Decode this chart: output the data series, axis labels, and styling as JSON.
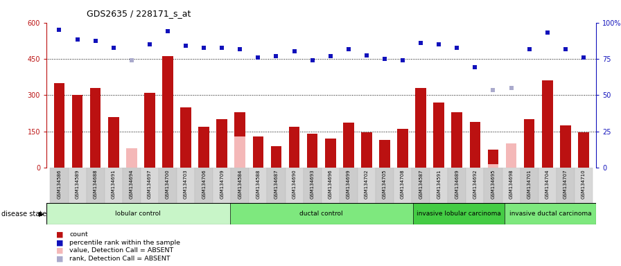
{
  "title": "GDS2635 / 228171_s_at",
  "samples": [
    "GSM134586",
    "GSM134589",
    "GSM134688",
    "GSM134691",
    "GSM134694",
    "GSM134697",
    "GSM134700",
    "GSM134703",
    "GSM134706",
    "GSM134709",
    "GSM134584",
    "GSM134588",
    "GSM134687",
    "GSM134690",
    "GSM134693",
    "GSM134696",
    "GSM134699",
    "GSM134702",
    "GSM134705",
    "GSM134708",
    "GSM134587",
    "GSM134591",
    "GSM134689",
    "GSM134692",
    "GSM134695",
    "GSM134698",
    "GSM134701",
    "GSM134704",
    "GSM134707",
    "GSM134710"
  ],
  "bar_values": [
    350,
    300,
    330,
    210,
    80,
    310,
    460,
    250,
    170,
    200,
    230,
    130,
    90,
    170,
    140,
    120,
    185,
    145,
    115,
    160,
    330,
    270,
    230,
    190,
    75,
    85,
    200,
    360,
    175,
    145
  ],
  "bar_absent": [
    null,
    null,
    null,
    null,
    80,
    null,
    null,
    null,
    null,
    null,
    130,
    null,
    null,
    null,
    null,
    null,
    null,
    null,
    null,
    null,
    null,
    null,
    null,
    null,
    15,
    100,
    null,
    null,
    null,
    null
  ],
  "rank_values": [
    570,
    530,
    525,
    495,
    null,
    510,
    565,
    505,
    495,
    495,
    490,
    455,
    460,
    480,
    445,
    460,
    490,
    465,
    450,
    445,
    515,
    510,
    495,
    415,
    null,
    null,
    490,
    560,
    490,
    455
  ],
  "rank_absent": [
    null,
    null,
    null,
    null,
    445,
    null,
    null,
    null,
    null,
    null,
    null,
    null,
    null,
    null,
    null,
    null,
    null,
    null,
    null,
    null,
    null,
    null,
    null,
    null,
    320,
    330,
    null,
    null,
    null,
    null
  ],
  "groups": [
    {
      "label": "lobular control",
      "start": 0,
      "end": 9,
      "color": "#c8f5c8"
    },
    {
      "label": "ductal control",
      "start": 10,
      "end": 19,
      "color": "#7ee87e"
    },
    {
      "label": "invasive lobular carcinoma",
      "start": 20,
      "end": 24,
      "color": "#44cc44"
    },
    {
      "label": "invasive ductal carcinoma",
      "start": 25,
      "end": 29,
      "color": "#7ee87e"
    }
  ],
  "ylim_left": [
    0,
    600
  ],
  "ylim_right": [
    0,
    100
  ],
  "yticks_left": [
    0,
    150,
    300,
    450,
    600
  ],
  "yticks_right": [
    0,
    25,
    50,
    75,
    100
  ],
  "bar_color": "#bb1111",
  "bar_absent_color": "#f4b8b8",
  "rank_color": "#1111bb",
  "rank_absent_color": "#aaaacc",
  "plot_bg": "#ffffff",
  "tick_bg": "#d0d0d0",
  "legend_items": [
    {
      "label": "count",
      "color": "#bb1111"
    },
    {
      "label": "percentile rank within the sample",
      "color": "#1111bb"
    },
    {
      "label": "value, Detection Call = ABSENT",
      "color": "#f4b8b8"
    },
    {
      "label": "rank, Detection Call = ABSENT",
      "color": "#aaaacc"
    }
  ]
}
